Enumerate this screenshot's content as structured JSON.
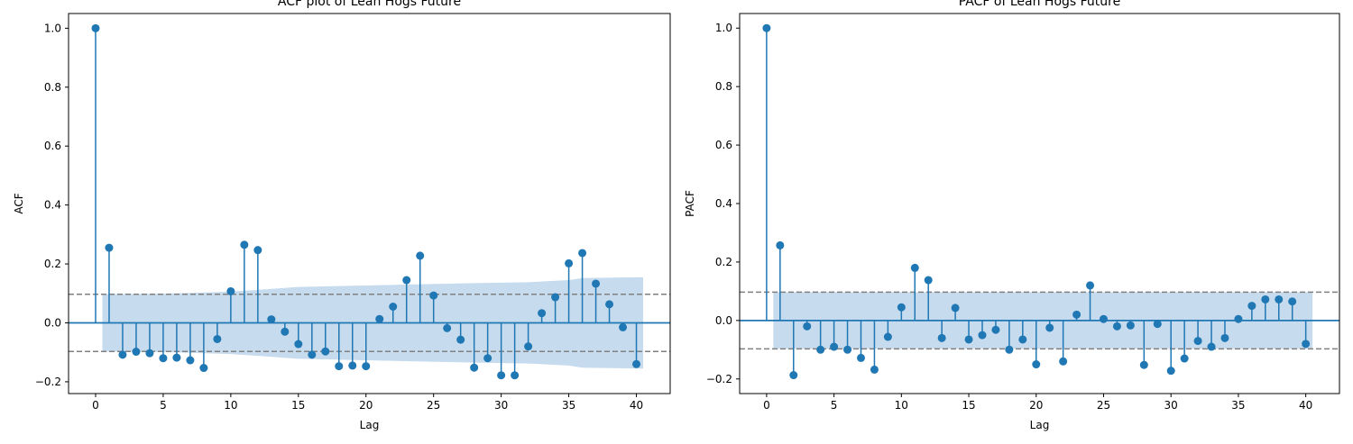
{
  "chart_data": [
    {
      "type": "stem",
      "title": "ACF plot of Lean Hogs Future",
      "xlabel": "Lag",
      "ylabel": "ACF",
      "xlim": [
        -2,
        42.5
      ],
      "ylim": [
        -0.24,
        1.05
      ],
      "xticks": [
        0,
        5,
        10,
        15,
        20,
        25,
        30,
        35,
        40
      ],
      "xtick_labels": [
        "0",
        "5",
        "10",
        "15",
        "20",
        "25",
        "30",
        "35",
        "40"
      ],
      "yticks": [
        -0.2,
        0.0,
        0.2,
        0.4,
        0.6,
        0.8,
        1.0
      ],
      "ytick_labels": [
        "−0.2",
        "0.0",
        "0.2",
        "0.4",
        "0.6",
        "0.8",
        "1.0"
      ],
      "lags": [
        0,
        1,
        2,
        3,
        4,
        5,
        6,
        7,
        8,
        9,
        10,
        11,
        12,
        13,
        14,
        15,
        16,
        17,
        18,
        19,
        20,
        21,
        22,
        23,
        24,
        25,
        26,
        27,
        28,
        29,
        30,
        31,
        32,
        33,
        34,
        35,
        36,
        37,
        38,
        39,
        40
      ],
      "values": [
        1.0,
        0.255,
        -0.108,
        -0.098,
        -0.103,
        -0.12,
        -0.118,
        -0.127,
        -0.153,
        -0.055,
        0.107,
        0.265,
        0.247,
        0.012,
        -0.03,
        -0.072,
        -0.108,
        -0.097,
        -0.147,
        -0.145,
        -0.147,
        0.013,
        0.055,
        0.145,
        0.228,
        0.093,
        -0.018,
        -0.057,
        -0.152,
        -0.12,
        -0.178,
        -0.178,
        -0.08,
        0.033,
        0.087,
        0.202,
        0.237,
        0.133,
        0.063,
        -0.015,
        -0.14
      ],
      "confidence_band": {
        "lags": [
          0.5,
          5,
          10,
          12,
          15,
          20,
          24,
          28,
          32,
          35,
          36,
          40.5
        ],
        "upper": [
          0.097,
          0.099,
          0.106,
          0.112,
          0.122,
          0.127,
          0.131,
          0.135,
          0.138,
          0.145,
          0.152,
          0.155
        ],
        "lower": [
          -0.097,
          -0.099,
          -0.106,
          -0.112,
          -0.122,
          -0.127,
          -0.131,
          -0.135,
          -0.138,
          -0.145,
          -0.152,
          -0.155
        ]
      },
      "reference_lines": [
        0.097,
        -0.097
      ],
      "colors": {
        "stem": "#1f77b4",
        "band": "#c6dbee",
        "reference": "#808080"
      }
    },
    {
      "type": "stem",
      "title": "PACF of Lean Hogs Future",
      "xlabel": "Lag",
      "ylabel": "PACF",
      "xlim": [
        -2,
        42.5
      ],
      "ylim": [
        -0.25,
        1.05
      ],
      "xticks": [
        0,
        5,
        10,
        15,
        20,
        25,
        30,
        35,
        40
      ],
      "xtick_labels": [
        "0",
        "5",
        "10",
        "15",
        "20",
        "25",
        "30",
        "35",
        "40"
      ],
      "yticks": [
        -0.2,
        0.0,
        0.2,
        0.4,
        0.6,
        0.8,
        1.0
      ],
      "ytick_labels": [
        "−0.2",
        "0.0",
        "0.2",
        "0.4",
        "0.6",
        "0.8",
        "1.0"
      ],
      "lags": [
        0,
        1,
        2,
        3,
        4,
        5,
        6,
        7,
        8,
        9,
        10,
        11,
        12,
        13,
        14,
        15,
        16,
        17,
        18,
        19,
        20,
        21,
        22,
        23,
        24,
        25,
        26,
        27,
        28,
        29,
        30,
        31,
        32,
        33,
        34,
        35,
        36,
        37,
        38,
        39,
        40
      ],
      "values": [
        1.0,
        0.257,
        -0.187,
        -0.02,
        -0.1,
        -0.09,
        -0.1,
        -0.128,
        -0.168,
        -0.056,
        0.045,
        0.18,
        0.138,
        -0.06,
        0.043,
        -0.065,
        -0.05,
        -0.032,
        -0.1,
        -0.065,
        -0.15,
        -0.025,
        -0.14,
        0.02,
        0.12,
        0.005,
        -0.02,
        -0.017,
        -0.152,
        -0.012,
        -0.172,
        -0.13,
        -0.07,
        -0.09,
        -0.06,
        0.005,
        0.05,
        0.072,
        0.072,
        0.065,
        -0.08
      ],
      "confidence_band": {
        "lags": [
          0.5,
          40.5
        ],
        "upper": [
          0.097,
          0.097
        ],
        "lower": [
          -0.097,
          -0.097
        ]
      },
      "reference_lines": [
        0.097,
        -0.097
      ],
      "colors": {
        "stem": "#1f77b4",
        "band": "#c6dbee",
        "reference": "#808080"
      }
    }
  ]
}
